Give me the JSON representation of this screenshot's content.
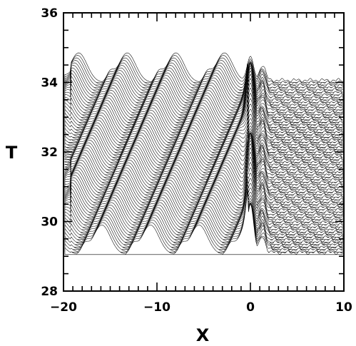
{
  "chart_data": {
    "type": "line",
    "title": "",
    "xlabel": "X",
    "ylabel": "T",
    "xlim": [
      -20,
      10
    ],
    "ylim": [
      28,
      36
    ],
    "x_ticks": [
      {
        "value": -20,
        "label": "−20"
      },
      {
        "value": -10,
        "label": "−10"
      },
      {
        "value": 0,
        "label": "0"
      },
      {
        "value": 10,
        "label": "10"
      }
    ],
    "y_ticks": [
      {
        "value": 28,
        "label": "28"
      },
      {
        "value": 30,
        "label": "30"
      },
      {
        "value": 32,
        "label": "32"
      },
      {
        "value": 34,
        "label": "34"
      },
      {
        "value": 36,
        "label": "36"
      }
    ],
    "x_minor_step": 1,
    "y_minor_step": 0.5,
    "series": [
      {
        "style": "waterfall",
        "trace_count": 70,
        "t_start": 29.05,
        "t_end": 34.0,
        "peak_height_max": 1.5,
        "wave_velocity_dx_dt": 1.6,
        "wave_spacing_x": 5.2,
        "wave_phase_x": -13.3,
        "wave_width_x": 0.9,
        "wave_profile_peaks": [
          {
            "x": -19.5,
            "h": 0.7
          },
          {
            "x": -12.8,
            "h": 1.0
          },
          {
            "x": -4.0,
            "h": 0.9
          },
          {
            "x": 0.0,
            "h": 1.4
          },
          {
            "x": 1.3,
            "h": 0.5
          }
        ],
        "shock_x": 0.0,
        "shock_width_x": 0.35,
        "right_region_amplitude": 0.12
      }
    ],
    "grid": false,
    "legend": "none"
  }
}
